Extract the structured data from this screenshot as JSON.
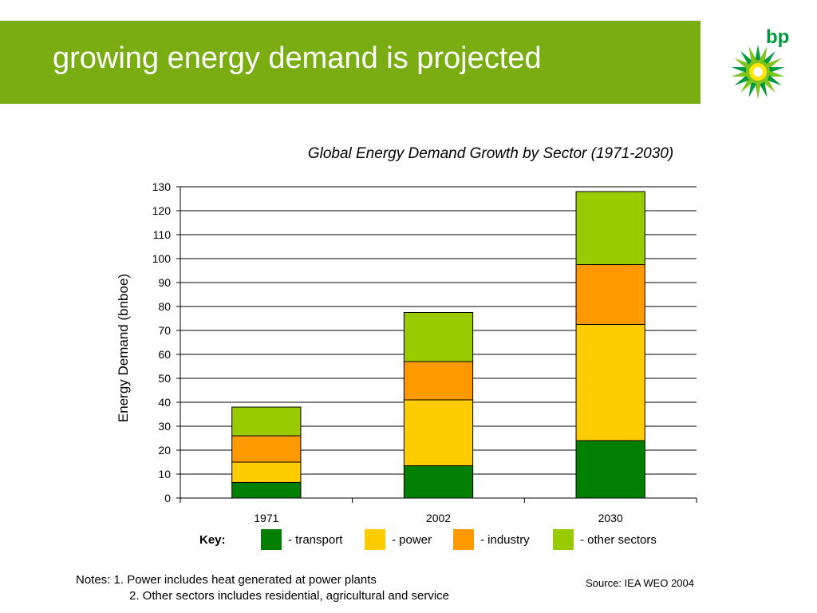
{
  "header": {
    "title": "growing energy demand is projected"
  },
  "logo": {
    "text": "bp",
    "brand_green": "#009a3e",
    "brand_yellow": "#ffe500"
  },
  "colors": {
    "header_bg": "#7aad12"
  },
  "key_label": "Key:",
  "chart_data": {
    "type": "bar",
    "stacked": true,
    "title": "Global Energy Demand Growth by Sector (1971-2030)",
    "xlabel": "",
    "ylabel": "Energy Demand (bnboe)",
    "ylim": [
      0,
      130
    ],
    "yticks": [
      0,
      10,
      20,
      30,
      40,
      50,
      60,
      70,
      80,
      90,
      100,
      110,
      120,
      130
    ],
    "categories": [
      "1971",
      "2002",
      "2030"
    ],
    "series": [
      {
        "name": "- transport",
        "color": "#007f00",
        "values": [
          6.5,
          13.5,
          24
        ]
      },
      {
        "name": "- power",
        "color": "#ffcc00",
        "values": [
          8.5,
          27.5,
          48.5
        ]
      },
      {
        "name": "- industry",
        "color": "#ff9900",
        "values": [
          11,
          16,
          25
        ]
      },
      {
        "name": "- other sectors",
        "color": "#99cc00",
        "values": [
          12,
          20.5,
          30.5
        ]
      }
    ],
    "grid": true,
    "legend_position": "bottom"
  },
  "notes": {
    "line1": "Notes:  1. Power includes heat generated at power plants",
    "line2": "2. Other sectors includes residential, agricultural and service"
  },
  "source": "Source: IEA WEO 2004"
}
